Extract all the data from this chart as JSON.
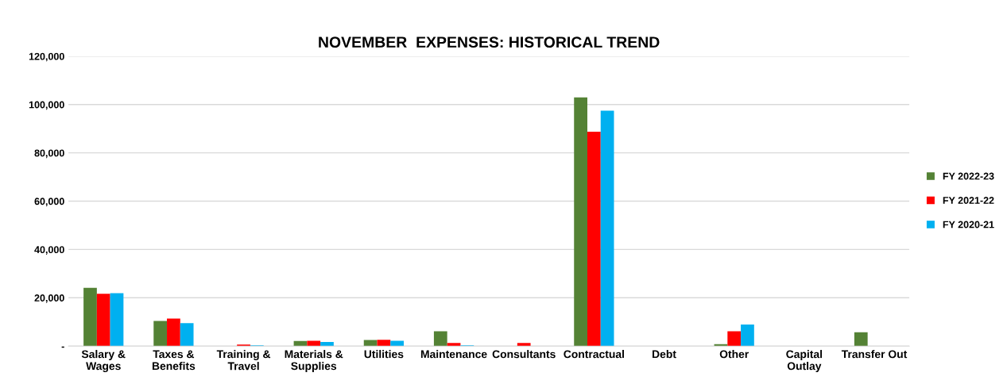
{
  "chart_data": {
    "type": "bar",
    "title": "NOVEMBER  EXPENSES: HISTORICAL TREND",
    "categories": [
      "Salary &\nWages",
      "Taxes &\nBenefits",
      "Training &\nTravel",
      "Materials &\nSupplies",
      "Utilities",
      "Maintenance",
      "Consultants",
      "Contractual",
      "Debt",
      "Other",
      "Capital\nOutlay",
      "Transfer Out"
    ],
    "series": [
      {
        "name": "FY 2022-23",
        "color": "#548235",
        "values": [
          24100,
          10400,
          null,
          2100,
          2500,
          6100,
          null,
          103000,
          null,
          800,
          null,
          5700
        ]
      },
      {
        "name": "FY 2021-22",
        "color": "#ff0000",
        "values": [
          21700,
          11400,
          600,
          2200,
          2600,
          1300,
          1300,
          88800,
          null,
          6100,
          null,
          null
        ]
      },
      {
        "name": "FY 2020-21",
        "color": "#00b0f0",
        "values": [
          21900,
          9500,
          300,
          1700,
          2200,
          300,
          null,
          97500,
          null,
          8900,
          null,
          null
        ]
      }
    ],
    "ylim": [
      0,
      120000
    ],
    "yticks": [
      {
        "value": 0,
        "label": "-"
      },
      {
        "value": 20000,
        "label": "20,000"
      },
      {
        "value": 40000,
        "label": "40,000"
      },
      {
        "value": 60000,
        "label": "60,000"
      },
      {
        "value": 80000,
        "label": "80,000"
      },
      {
        "value": 100000,
        "label": "100,000"
      },
      {
        "value": 120000,
        "label": "120,000"
      }
    ],
    "grid": "y",
    "legend": "right"
  }
}
